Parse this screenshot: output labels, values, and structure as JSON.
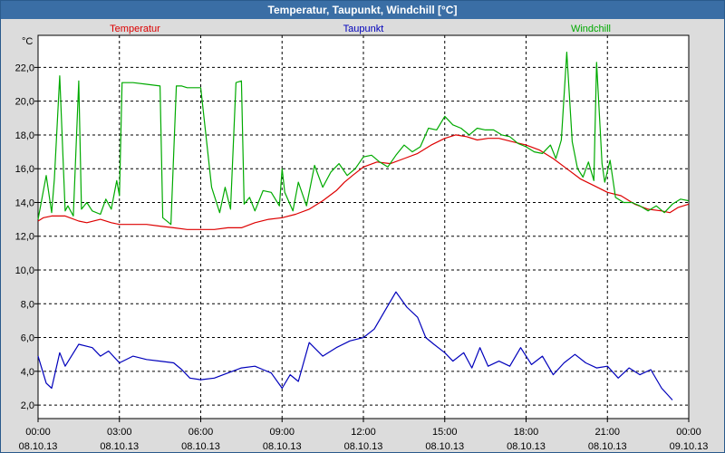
{
  "window": {
    "title": "Temperatur, Taupunkt, Windchill [°C]"
  },
  "chart_data": {
    "type": "line",
    "title": "Temperatur, Taupunkt, Windchill [°C]",
    "ylabel": "°C",
    "xlabel": "",
    "ylim": [
      1.2,
      23.9
    ],
    "xlim": [
      0,
      24
    ],
    "grid": true,
    "y_ticks": [
      "2,0",
      "4,0",
      "6,0",
      "8,0",
      "10,0",
      "12,0",
      "14,0",
      "16,0",
      "18,0",
      "20,0",
      "22,0"
    ],
    "y_tick_values": [
      2,
      4,
      6,
      8,
      10,
      12,
      14,
      16,
      18,
      20,
      22
    ],
    "x_ticks": [
      {
        "time": "00:00",
        "date": "08.10.13"
      },
      {
        "time": "03:00",
        "date": "08.10.13"
      },
      {
        "time": "06:00",
        "date": "08.10.13"
      },
      {
        "time": "09:00",
        "date": "08.10.13"
      },
      {
        "time": "12:00",
        "date": "08.10.13"
      },
      {
        "time": "15:00",
        "date": "08.10.13"
      },
      {
        "time": "18:00",
        "date": "08.10.13"
      },
      {
        "time": "21:00",
        "date": "08.10.13"
      },
      {
        "time": "00:00",
        "date": "09.10.13"
      }
    ],
    "series": [
      {
        "name": "Temperatur",
        "color": "#dd0000",
        "x": [
          0,
          0.2,
          0.5,
          1,
          1.5,
          1.8,
          2.3,
          2.7,
          3,
          3.5,
          4,
          4.5,
          5,
          5.5,
          6,
          6.5,
          7,
          7.5,
          8,
          8.5,
          9,
          9.5,
          10,
          10.5,
          11,
          11.3,
          11.6,
          12,
          12.5,
          13,
          13.5,
          14,
          14.5,
          15,
          15.4,
          15.8,
          16.2,
          16.6,
          17,
          17.5,
          18,
          18.5,
          19,
          19.5,
          20,
          20.5,
          21,
          21.5,
          22,
          22.5,
          23,
          23.3,
          23.6,
          24
        ],
        "values": [
          12.9,
          13.1,
          13.2,
          13.2,
          12.9,
          12.8,
          13.0,
          12.8,
          12.7,
          12.7,
          12.7,
          12.6,
          12.5,
          12.4,
          12.4,
          12.4,
          12.5,
          12.5,
          12.8,
          13.0,
          13.1,
          13.3,
          13.6,
          14.1,
          14.7,
          15.2,
          15.6,
          16.1,
          16.4,
          16.3,
          16.6,
          16.9,
          17.4,
          17.8,
          18.0,
          17.9,
          17.7,
          17.8,
          17.8,
          17.6,
          17.4,
          17.1,
          16.6,
          16.0,
          15.4,
          15.0,
          14.6,
          14.4,
          13.9,
          13.6,
          13.5,
          13.4,
          13.7,
          13.9
        ]
      },
      {
        "name": "Taupunkt",
        "color": "#0000bb",
        "x": [
          0,
          0.3,
          0.5,
          0.8,
          1,
          1.5,
          2,
          2.3,
          2.6,
          3,
          3.5,
          4,
          4.5,
          5,
          5.3,
          5.6,
          6,
          6.5,
          7,
          7.5,
          8,
          8.3,
          8.6,
          9,
          9.3,
          9.6,
          10,
          10.5,
          11,
          11.5,
          12,
          12.4,
          12.8,
          13.2,
          13.6,
          14,
          14.3,
          14.6,
          15,
          15.3,
          15.7,
          16,
          16.3,
          16.6,
          17,
          17.4,
          17.8,
          18.2,
          18.6,
          19,
          19.4,
          19.8,
          20.2,
          20.6,
          21,
          21.4,
          21.8,
          22.2,
          22.6,
          23,
          23.4
        ],
        "values": [
          4.9,
          3.3,
          3.0,
          5.1,
          4.3,
          5.6,
          5.4,
          4.9,
          5.2,
          4.5,
          4.9,
          4.7,
          4.6,
          4.5,
          4.1,
          3.6,
          3.5,
          3.6,
          3.9,
          4.2,
          4.3,
          4.1,
          3.9,
          3.0,
          3.8,
          3.4,
          5.7,
          4.9,
          5.4,
          5.8,
          6.0,
          6.5,
          7.6,
          8.7,
          7.8,
          7.2,
          6.0,
          5.6,
          5.1,
          4.6,
          5.1,
          4.2,
          5.4,
          4.3,
          4.6,
          4.3,
          5.4,
          4.4,
          4.9,
          3.8,
          4.5,
          5.0,
          4.5,
          4.2,
          4.3,
          3.6,
          4.2,
          3.8,
          4.1,
          3.0,
          2.3
        ]
      },
      {
        "name": "Windchill",
        "color": "#00aa00",
        "x": [
          0,
          0.3,
          0.5,
          0.6,
          0.8,
          1.0,
          1.1,
          1.3,
          1.5,
          1.6,
          1.8,
          2.0,
          2.3,
          2.5,
          2.7,
          2.9,
          3.0,
          3.1,
          3.5,
          4.0,
          4.5,
          4.6,
          4.9,
          5.1,
          5.3,
          5.5,
          6.0,
          6.4,
          6.7,
          6.9,
          7.1,
          7.3,
          7.5,
          7.6,
          7.8,
          8.0,
          8.3,
          8.6,
          8.9,
          9.0,
          9.1,
          9.4,
          9.6,
          9.9,
          10.2,
          10.5,
          10.8,
          11.1,
          11.4,
          11.7,
          12.0,
          12.3,
          12.6,
          12.9,
          13.2,
          13.5,
          13.8,
          14.1,
          14.4,
          14.7,
          15.0,
          15.3,
          15.6,
          15.9,
          16.2,
          16.5,
          16.8,
          17.1,
          17.4,
          17.7,
          18.0,
          18.3,
          18.6,
          18.9,
          19.1,
          19.3,
          19.5,
          19.7,
          19.9,
          20.1,
          20.3,
          20.5,
          20.6,
          20.8,
          20.9,
          21.1,
          21.3,
          21.6,
          21.9,
          22.2,
          22.5,
          22.8,
          23.1,
          23.4,
          23.7,
          24
        ],
        "values": [
          13.0,
          15.6,
          13.4,
          15.4,
          21.5,
          13.5,
          13.8,
          13.2,
          21.2,
          13.6,
          14.0,
          13.5,
          13.3,
          14.2,
          13.6,
          15.3,
          14.4,
          21.1,
          21.1,
          21.0,
          20.9,
          13.1,
          12.7,
          20.9,
          20.9,
          20.8,
          20.8,
          14.9,
          13.4,
          14.9,
          13.6,
          21.1,
          21.2,
          13.9,
          14.3,
          13.5,
          14.7,
          14.6,
          13.8,
          16.0,
          14.6,
          13.5,
          15.2,
          13.8,
          16.2,
          14.9,
          15.8,
          16.3,
          15.6,
          16.0,
          16.7,
          16.8,
          16.4,
          16.1,
          16.8,
          17.4,
          17.0,
          17.3,
          18.4,
          18.3,
          19.1,
          18.6,
          18.4,
          18.0,
          18.4,
          18.3,
          18.3,
          18.0,
          17.9,
          17.5,
          17.3,
          17.0,
          16.9,
          17.4,
          16.6,
          17.7,
          22.9,
          17.6,
          16.0,
          15.5,
          16.4,
          15.3,
          22.3,
          16.3,
          15.2,
          16.5,
          14.3,
          14.0,
          14.0,
          13.8,
          13.5,
          13.8,
          13.4,
          13.9,
          14.2,
          14.1
        ]
      }
    ]
  }
}
